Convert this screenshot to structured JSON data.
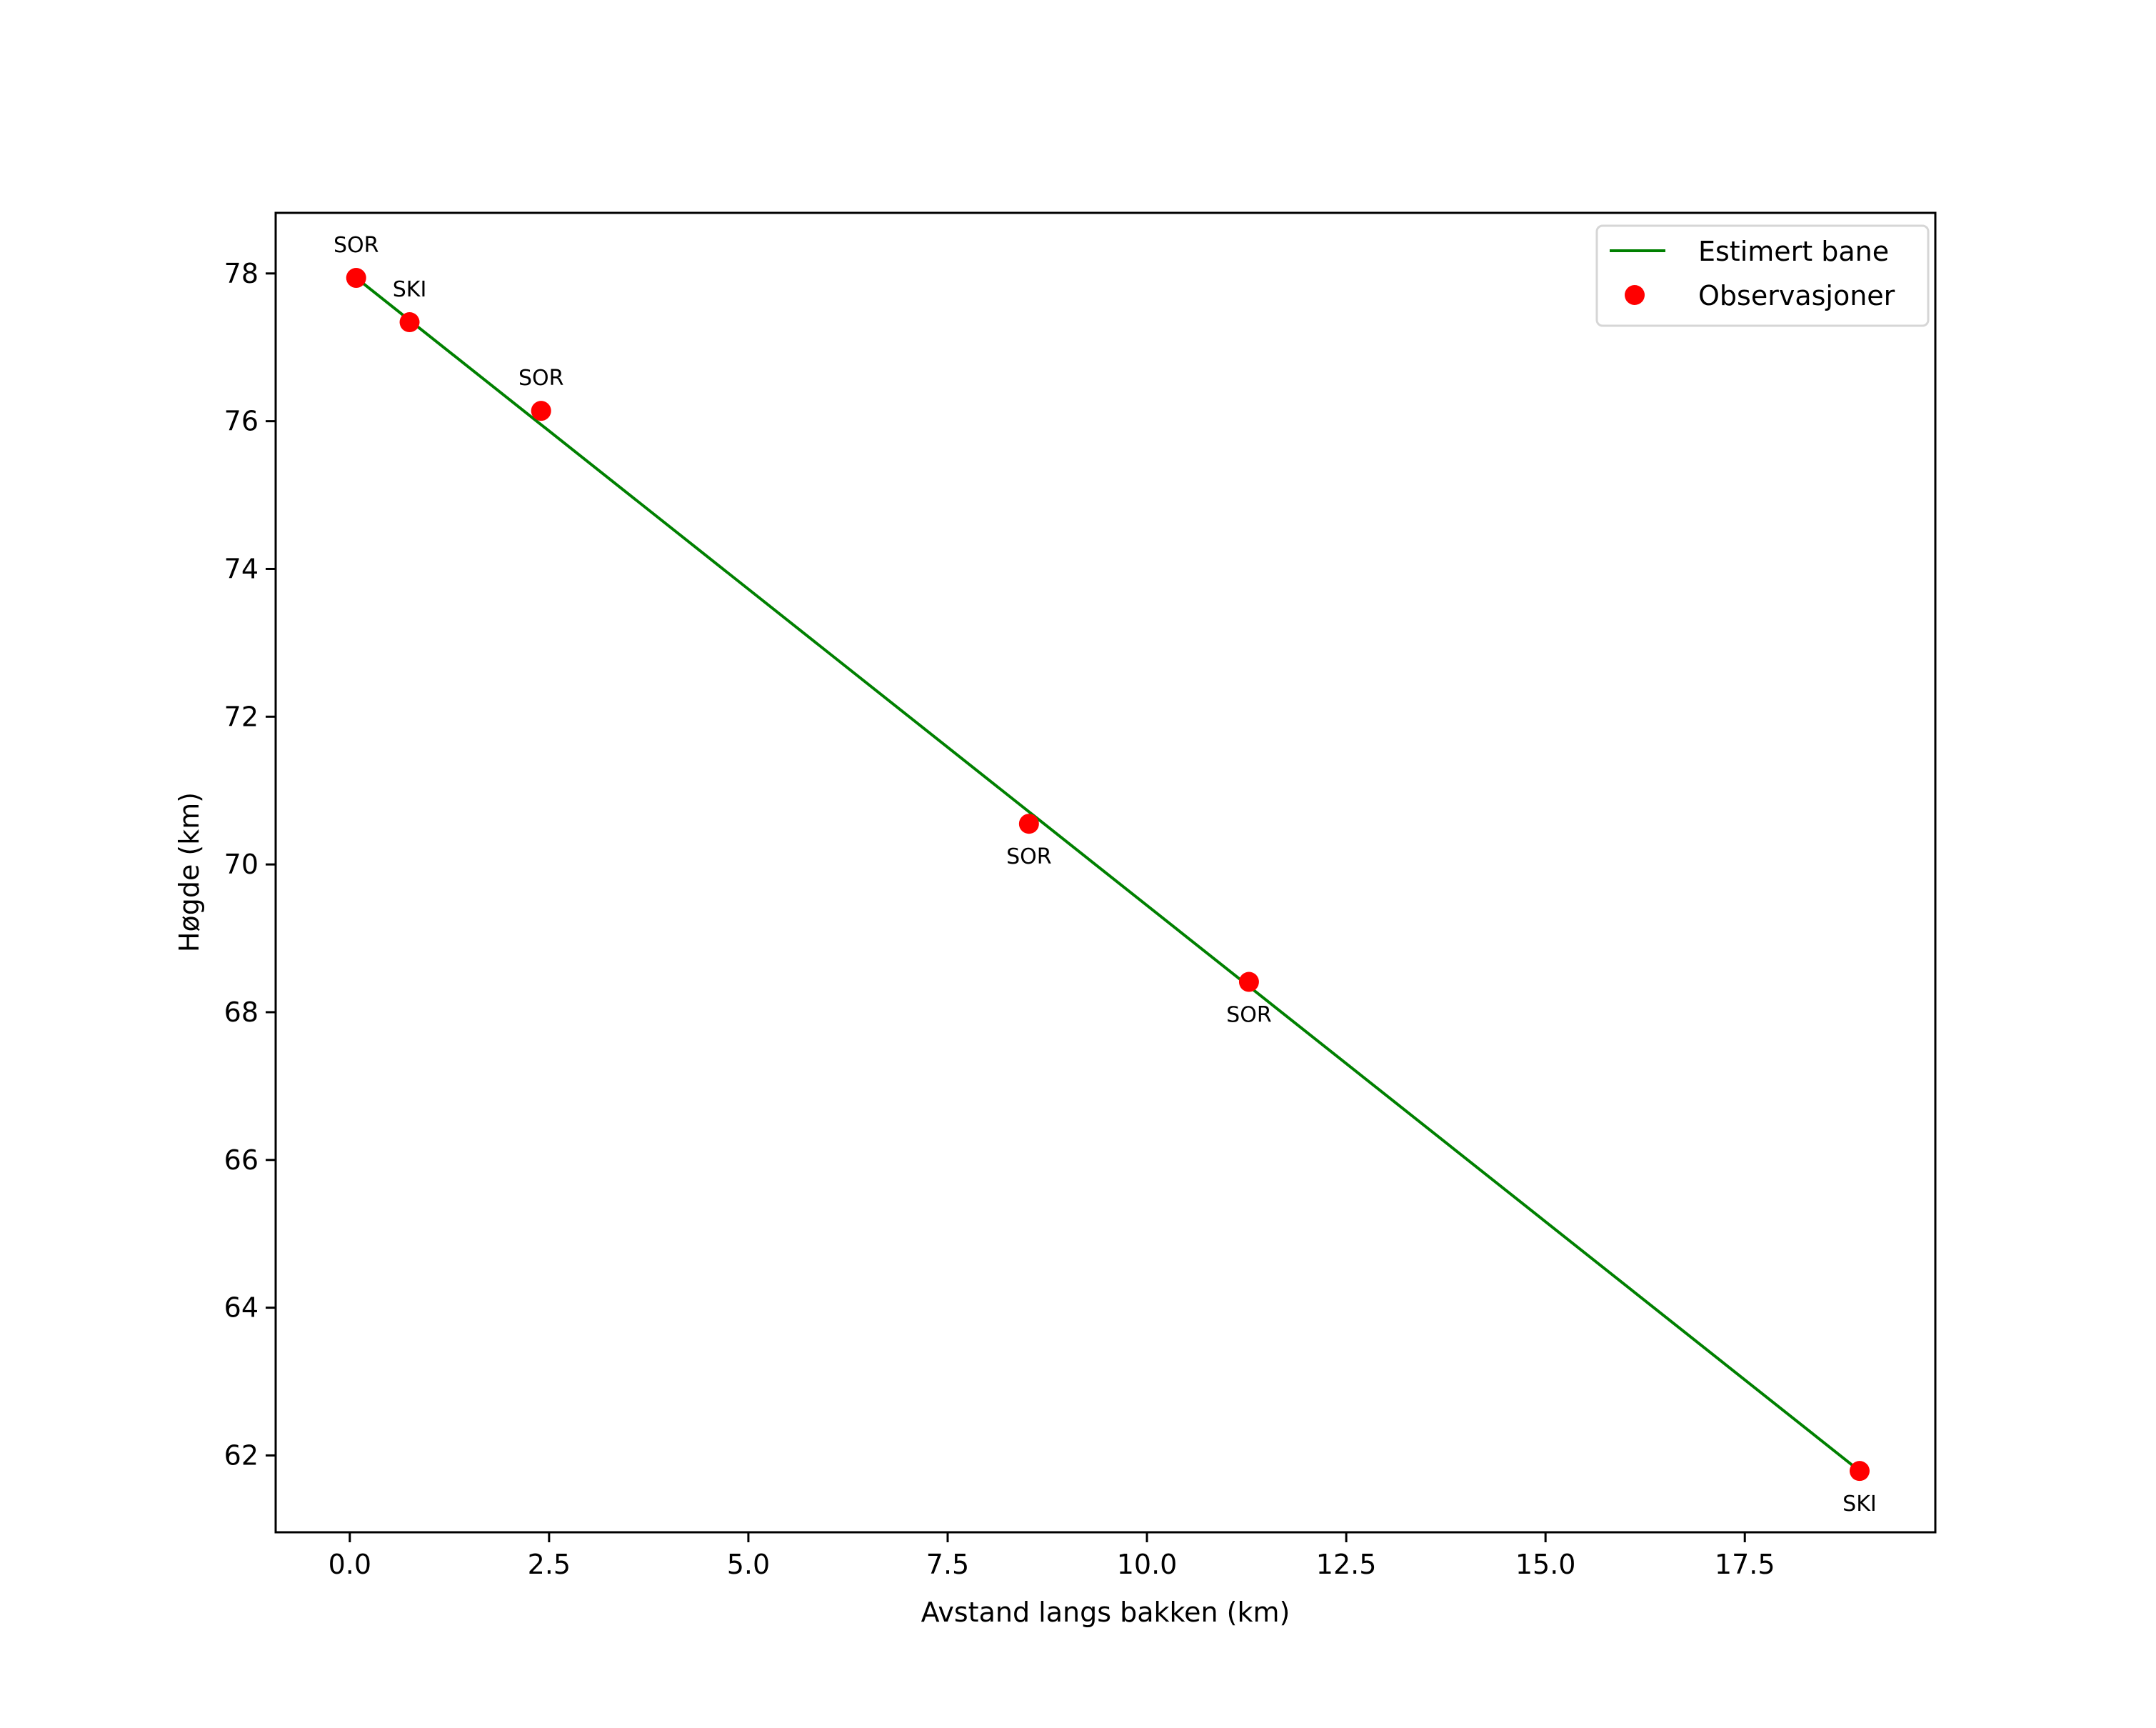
{
  "chart_data": {
    "type": "line+scatter",
    "title": "",
    "xlabel": "Avstand langs bakken (km)",
    "ylabel": "Høgde (km)",
    "xlim": [
      -0.93,
      19.89
    ],
    "ylim": [
      60.96,
      78.82
    ],
    "xticks": [
      "0.0",
      "2.5",
      "5.0",
      "7.5",
      "10.0",
      "12.5",
      "15.0",
      "17.5"
    ],
    "xtick_values": [
      0,
      2.5,
      5,
      7.5,
      10,
      12.5,
      15,
      17.5
    ],
    "yticks": [
      "62",
      "64",
      "66",
      "68",
      "70",
      "72",
      "74",
      "76",
      "78"
    ],
    "ytick_values": [
      62,
      64,
      66,
      68,
      70,
      72,
      74,
      76,
      78
    ],
    "grid": false,
    "legend_position": "upper right",
    "series": [
      {
        "name": "Estimert bane",
        "type": "line",
        "color": "#008000",
        "x": [
          0.08,
          18.94
        ],
        "y": [
          77.94,
          61.79
        ]
      },
      {
        "name": "Observasjoner",
        "type": "scatter",
        "color": "#ff0000",
        "x": [
          0.08,
          0.75,
          2.4,
          8.52,
          11.28,
          18.94
        ],
        "y": [
          77.94,
          77.34,
          76.14,
          70.55,
          68.41,
          61.79
        ],
        "labels": [
          "SOR",
          "SKI",
          "SOR",
          "SOR",
          "SOR",
          "SKI"
        ],
        "label_position": [
          "above",
          "above",
          "above",
          "below",
          "below",
          "below"
        ]
      }
    ]
  },
  "legend": {
    "items": [
      {
        "label": "Estimert bane"
      },
      {
        "label": "Observasjoner"
      }
    ]
  }
}
